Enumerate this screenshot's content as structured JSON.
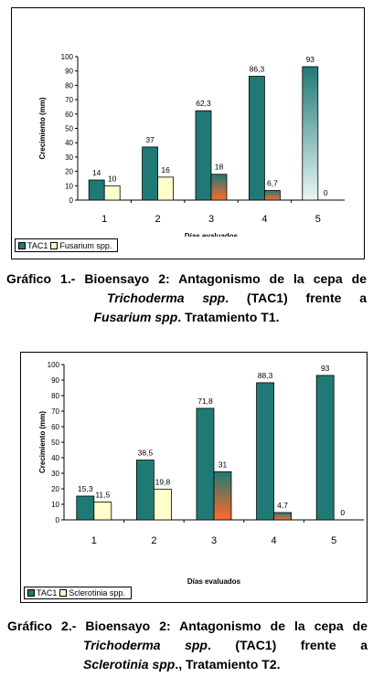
{
  "chart_data": [
    {
      "type": "bar",
      "title": "",
      "xlabel": "Días evaluados",
      "ylabel": "Crecimiento (mm)",
      "ylim": [
        0,
        100
      ],
      "yticks": [
        "0",
        "10",
        "20",
        "30",
        "40",
        "50",
        "60",
        "70",
        "80",
        "90",
        "100"
      ],
      "categories": [
        "1",
        "2",
        "3",
        "4",
        "5"
      ],
      "series": [
        {
          "name": "TAC1",
          "values": [
            14,
            37,
            62.3,
            86.3,
            93
          ],
          "labels": [
            "14",
            "37",
            "62,3",
            "86,3",
            "93"
          ],
          "color": "#1f7a75"
        },
        {
          "name": "Fusarium spp.",
          "values": [
            10,
            16,
            18,
            6.7,
            0
          ],
          "labels": [
            "10",
            "16",
            "18",
            "6,7",
            "0"
          ],
          "color": "#ffffcc"
        }
      ],
      "legend_position": "bottom-left",
      "grid": false
    },
    {
      "type": "bar",
      "title": "",
      "xlabel": "Días evaluados",
      "ylabel": "Crecimiento (mm)",
      "ylim": [
        0,
        100
      ],
      "yticks": [
        "0",
        "10",
        "20",
        "30",
        "40",
        "50",
        "60",
        "70",
        "80",
        "90",
        "100"
      ],
      "categories": [
        "1",
        "2",
        "3",
        "4",
        "5"
      ],
      "series": [
        {
          "name": "TAC1",
          "values": [
            15.3,
            38.5,
            71.8,
            88.3,
            93
          ],
          "labels": [
            "15,3",
            "38,5",
            "71,8",
            "88,3",
            "93"
          ],
          "color": "#1f7a75"
        },
        {
          "name": "Sclerotinia spp.",
          "values": [
            11.5,
            19.8,
            31,
            4.7,
            0
          ],
          "labels": [
            "11,5",
            "19,8",
            "31",
            "4,7",
            "0"
          ],
          "color": "#ffffcc"
        }
      ],
      "legend_position": "bottom-left",
      "grid": false
    }
  ],
  "captions": {
    "c1": {
      "prefix": "Gráfico 1.- Bioensayo 2: Antagonismo de la cepa de",
      "italic1": "Trichoderma spp",
      "mid": ". (TAC1) frente a",
      "italic2": "Fusarium spp",
      "suffix": ". Tratamiento T1."
    },
    "c2": {
      "prefix": "Gráfico 2.- Bioensayo 2: Antagonismo de la cepa de",
      "italic1": "Trichoderma spp",
      "mid": ". (TAC1) frente a",
      "italic2": "Sclerotinia spp",
      "suffix": "., Tratamiento T2."
    }
  },
  "colors": {
    "tac1": "#1f7a75",
    "pathogen_light": "#ffffcc",
    "gradient_orange": "#ff6a2a",
    "bar5_light": "#e8f6f6"
  }
}
